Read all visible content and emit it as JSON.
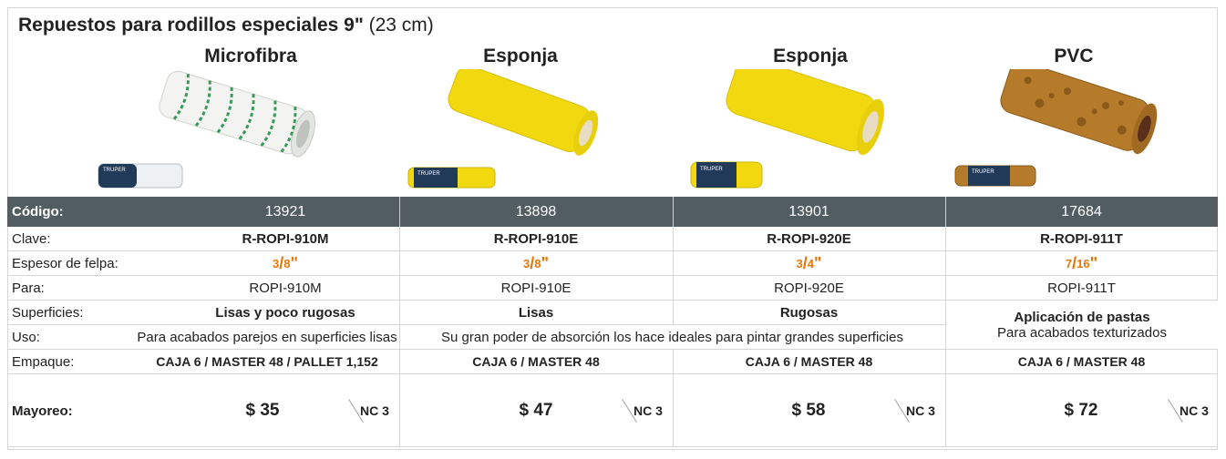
{
  "title": {
    "main": "Repuestos para rodillos especiales 9\"",
    "sub": "(23 cm)"
  },
  "products": [
    {
      "name": "Microfibra",
      "codigo": "13921",
      "clave": "R-ROPI-910M",
      "felpa_num": "3",
      "felpa_den": "8",
      "para": "ROPI-910M",
      "price": "$ 35",
      "nc": "NC 3",
      "image": "microfiber-roller-icon"
    },
    {
      "name": "Esponja",
      "codigo": "13898",
      "clave": "R-ROPI-910E",
      "felpa_num": "3",
      "felpa_den": "8",
      "para": "ROPI-910E",
      "price": "$ 47",
      "nc": "NC 3",
      "image": "sponge-roller-icon"
    },
    {
      "name": "Esponja",
      "codigo": "13901",
      "clave": "R-ROPI-920E",
      "felpa_num": "3",
      "felpa_den": "4",
      "para": "ROPI-920E",
      "price": "$ 58",
      "nc": "NC 3",
      "image": "sponge-roller-large-icon"
    },
    {
      "name": "PVC",
      "codigo": "17684",
      "clave": "R-ROPI-911T",
      "felpa_num": "7",
      "felpa_den": "16",
      "para": "ROPI-911T",
      "price": "$ 72",
      "nc": "NC 3",
      "image": "pvc-roller-icon"
    }
  ],
  "labels": {
    "codigo": "Código:",
    "clave": "Clave:",
    "espesor": "Espesor de felpa:",
    "para": "Para:",
    "superficies": "Superficies:",
    "uso": "Uso:",
    "empaque": "Empaque:",
    "mayoreo": "Mayoreo:"
  },
  "superficies": [
    "Lisas y poco rugosas",
    "Lisas",
    "Rugosas"
  ],
  "aplicacion": {
    "title": "Aplicación de pastas",
    "text": "Para acabados texturizados"
  },
  "uso": [
    "Para acabados parejos en superficies lisas",
    "Su gran poder de absorción los hace ideales para pintar grandes superficies"
  ],
  "empaque": [
    "CAJA 6 / MASTER 48 / PALLET 1,152",
    "CAJA 6 / MASTER 48",
    "CAJA 6 / MASTER 48",
    "CAJA 6 / MASTER 48"
  ],
  "inch_mark": "\"",
  "colors": {
    "header_bg": "#525d62",
    "accent_orange": "#e5760a",
    "sponge_yellow": "#f2d90f",
    "microfiber_white": "#f4f4f4",
    "pvc_brown": "#b57a2a"
  }
}
